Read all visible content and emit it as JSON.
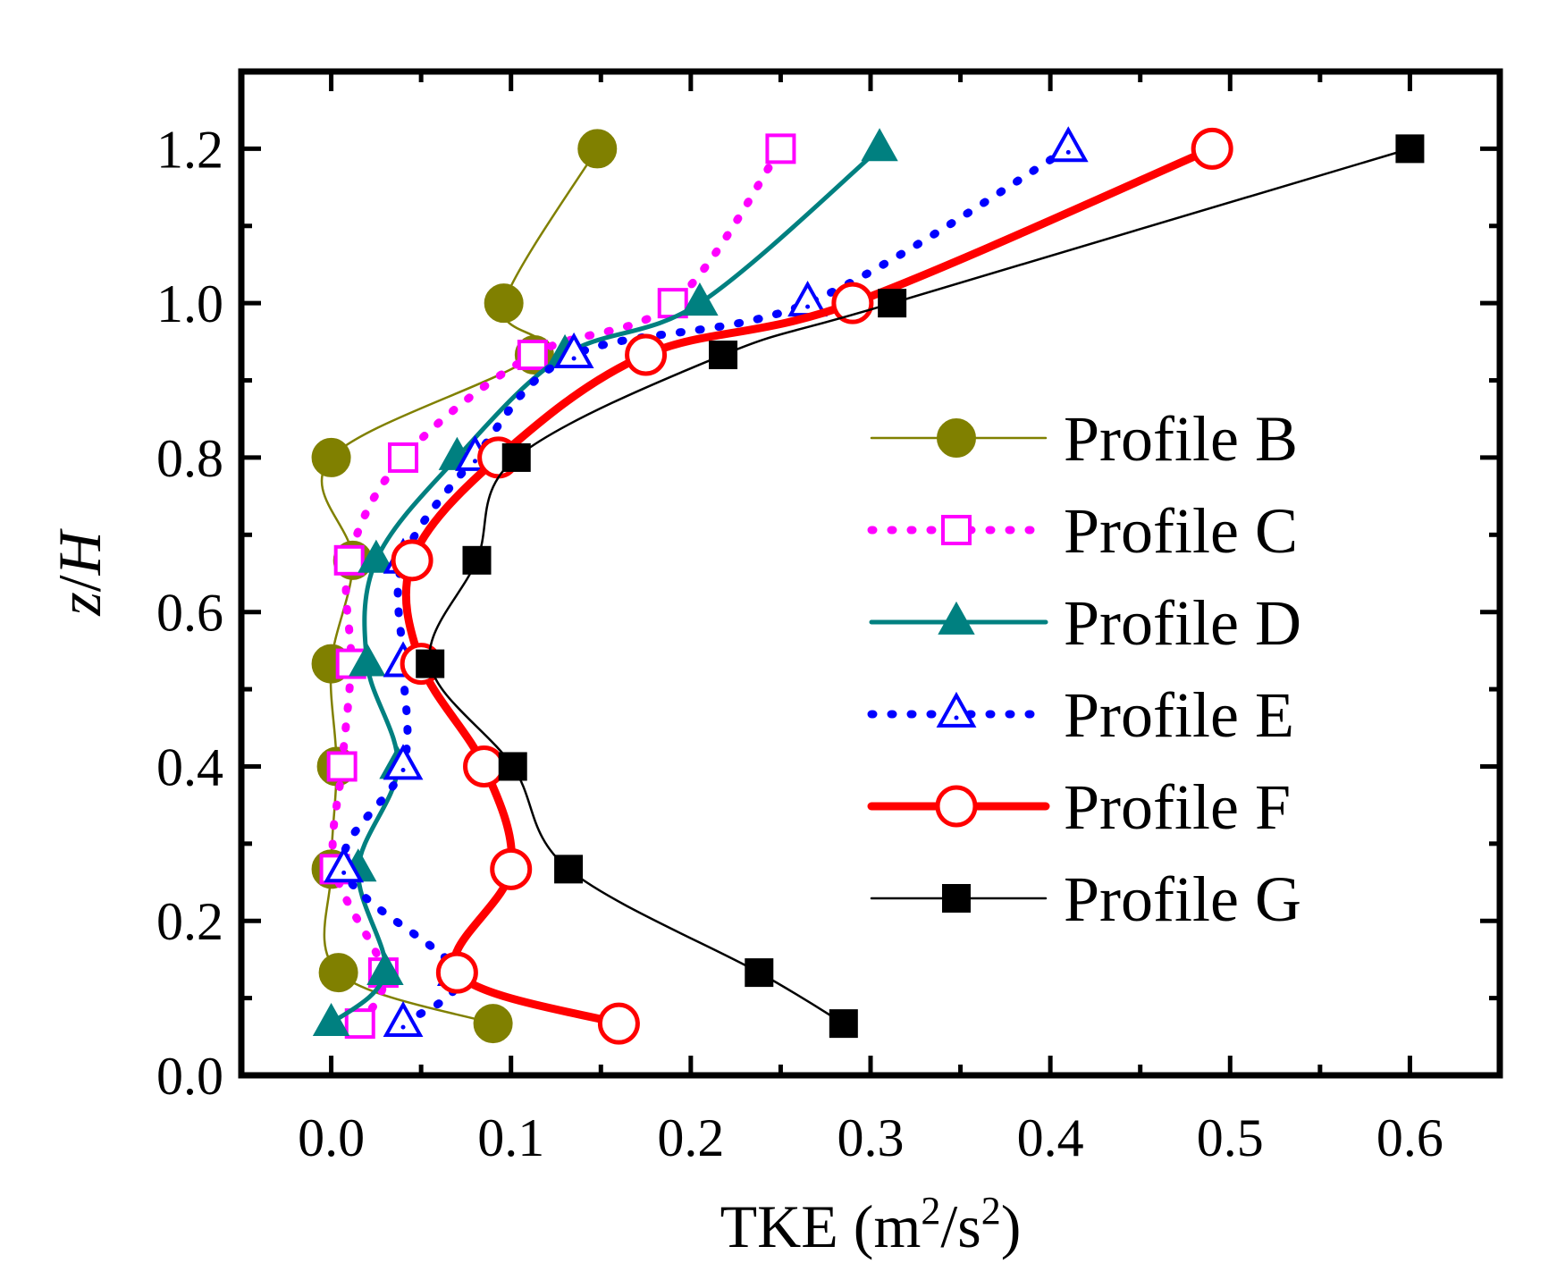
{
  "chart_data": {
    "type": "line",
    "title": "",
    "xlabel": "TKE  (m2/s2)",
    "xlabel_parts": {
      "base": "TKE  (m",
      "sup1": "2",
      "mid": "/s",
      "sup2": "2",
      "end": ")"
    },
    "ylabel": "z/H",
    "ylabel_parts": {
      "z": "z",
      "slash": "/",
      "H": "H"
    },
    "xlim": [
      -0.05,
      0.65
    ],
    "ylim": [
      0.0,
      1.3
    ],
    "xticks": [
      0.0,
      0.1,
      0.2,
      0.3,
      0.4,
      0.5,
      0.6
    ],
    "xtick_labels": [
      "0.0",
      "0.1",
      "0.2",
      "0.3",
      "0.4",
      "0.5",
      "0.6"
    ],
    "yticks": [
      0.0,
      0.2,
      0.4,
      0.6,
      0.8,
      1.0,
      1.2
    ],
    "ytick_labels": [
      "0.0",
      "0.2",
      "0.4",
      "0.6",
      "0.8",
      "1.0",
      "1.2"
    ],
    "grid": false,
    "legend_position": "center-right",
    "series": [
      {
        "name": "Profile B",
        "color": "#808000",
        "marker": "circle-filled",
        "line_style": "solid-thin",
        "x": [
          0.09,
          0.004,
          0.0,
          0.003,
          0.0,
          0.012,
          0.0,
          0.113,
          0.096,
          0.148
        ],
        "y": [
          0.067,
          0.133,
          0.267,
          0.4,
          0.533,
          0.667,
          0.8,
          0.933,
          1.0,
          1.2
        ]
      },
      {
        "name": "Profile C",
        "color": "#ff00ff",
        "marker": "square-open",
        "line_style": "dotted",
        "x": [
          0.016,
          0.029,
          0.002,
          0.006,
          0.011,
          0.01,
          0.04,
          0.112,
          0.19,
          0.25
        ],
        "y": [
          0.067,
          0.133,
          0.267,
          0.4,
          0.533,
          0.667,
          0.8,
          0.933,
          1.0,
          1.2
        ]
      },
      {
        "name": "Profile D",
        "color": "#008080",
        "marker": "triangle-filled",
        "line_style": "solid",
        "x": [
          0.0,
          0.03,
          0.015,
          0.037,
          0.02,
          0.025,
          0.07,
          0.13,
          0.205,
          0.305
        ],
        "y": [
          0.067,
          0.133,
          0.267,
          0.4,
          0.533,
          0.667,
          0.8,
          0.933,
          1.0,
          1.2
        ]
      },
      {
        "name": "Profile E",
        "color": "#0000ff",
        "marker": "triangle-open",
        "line_style": "dotted",
        "x": [
          0.04,
          0.07,
          0.007,
          0.04,
          0.04,
          0.04,
          0.08,
          0.135,
          0.265,
          0.41
        ],
        "y": [
          0.067,
          0.133,
          0.267,
          0.4,
          0.533,
          0.667,
          0.8,
          0.933,
          1.0,
          1.2
        ]
      },
      {
        "name": "Profile F",
        "color": "#ff0000",
        "marker": "circle-open",
        "line_style": "solid-thick",
        "x": [
          0.16,
          0.07,
          0.1,
          0.085,
          0.05,
          0.045,
          0.093,
          0.175,
          0.29,
          0.49
        ],
        "y": [
          0.067,
          0.133,
          0.267,
          0.4,
          0.533,
          0.667,
          0.8,
          0.933,
          1.0,
          1.2
        ]
      },
      {
        "name": "Profile G",
        "color": "#000000",
        "marker": "square-filled",
        "line_style": "solid-thin",
        "x": [
          0.285,
          0.238,
          0.132,
          0.101,
          0.055,
          0.081,
          0.103,
          0.218,
          0.312,
          0.6
        ],
        "y": [
          0.067,
          0.133,
          0.267,
          0.4,
          0.533,
          0.667,
          0.8,
          0.933,
          1.0,
          1.2
        ]
      }
    ]
  }
}
